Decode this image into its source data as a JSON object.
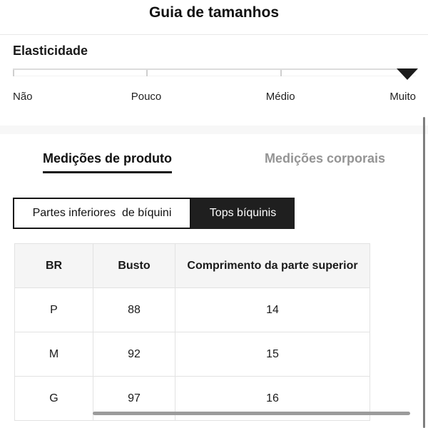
{
  "header": {
    "title": "Guia de tamanhos"
  },
  "elasticity": {
    "label": "Elasticidade",
    "levels": [
      "Não",
      "Pouco",
      "Médio",
      "Muito"
    ],
    "selected_level": "Muito",
    "marker_icon": "triangle-down"
  },
  "tabs": [
    {
      "label": "Medições de produto",
      "active": true
    },
    {
      "label": "Medições corporais",
      "active": false
    }
  ],
  "category_toggle": [
    {
      "label": "Partes inferiores  de bíquini",
      "selected": false
    },
    {
      "label": "Tops bíquinis",
      "selected": true
    }
  ],
  "table": {
    "columns": [
      "BR",
      "Busto",
      "Comprimento da parte superior"
    ],
    "rows": [
      [
        "P",
        "88",
        "14"
      ],
      [
        "M",
        "92",
        "15"
      ],
      [
        "G",
        "97",
        "16"
      ]
    ]
  },
  "colors": {
    "accent_dark": "#1f1f1f",
    "tab_inactive": "#949494",
    "table_header_bg": "#f5f5f5",
    "table_border": "#e2e2e2",
    "scale_line": "#dcdcdc",
    "scrollbar": "#9b9b9b",
    "divider": "#e8e8e8",
    "section_band": "#f7f7f7"
  }
}
